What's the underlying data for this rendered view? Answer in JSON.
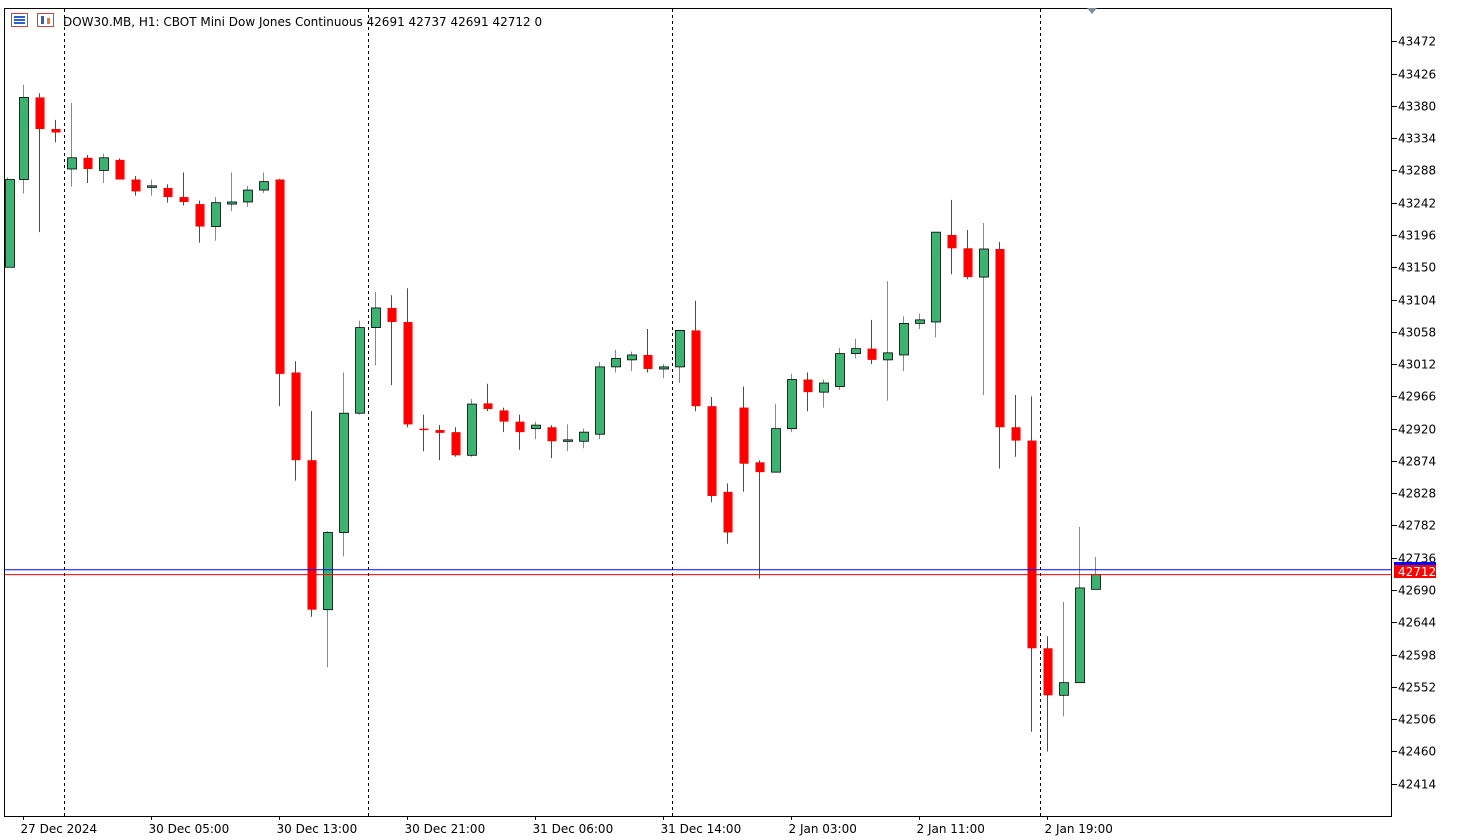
{
  "header": {
    "symbol_line": "DOW30.MB, H1:  CBOT Mini Dow Jones Continuous  42691 42737 42691 42712  0"
  },
  "colors": {
    "bull": "#3cb371",
    "bear": "#ff0000",
    "ask_line": "#0000ff",
    "bid_line": "#ff0000",
    "frame": "#000000",
    "background": "#ffffff"
  },
  "icons": [
    "chart-list-icon",
    "chart-type-icon",
    "shift-marker-icon"
  ],
  "price_label": "42712",
  "chart_data": {
    "type": "candlestick",
    "ylim": [
      42368,
      43518
    ],
    "y_ticks": [
      "43472",
      "43426",
      "43380",
      "43334",
      "43288",
      "43242",
      "43196",
      "43150",
      "43104",
      "43058",
      "43012",
      "42966",
      "42920",
      "42874",
      "42828",
      "42782",
      "42736",
      "42690",
      "42644",
      "42598",
      "42552",
      "42506",
      "42460",
      "42414"
    ],
    "x_labels": [
      "27 Dec 2024",
      "30 Dec 05:00",
      "30 Dec 13:00",
      "30 Dec 21:00",
      "31 Dec 06:00",
      "31 Dec 14:00",
      "2 Jan 03:00",
      "2 Jan 11:00",
      "2 Jan 19:00"
    ],
    "session_separators": [
      4,
      23,
      42,
      65
    ],
    "current_bid": 42712,
    "current_ask": 42719,
    "candles": [
      {
        "o": 43150,
        "h": 43278,
        "l": 43150,
        "c": 43275
      },
      {
        "o": 43275,
        "h": 43410,
        "l": 43255,
        "c": 43392
      },
      {
        "o": 43392,
        "h": 43398,
        "l": 43200,
        "c": 43347
      },
      {
        "o": 43347,
        "h": 43360,
        "l": 43328,
        "c": 43342
      },
      {
        "o": 43290,
        "h": 43384,
        "l": 43265,
        "c": 43306
      },
      {
        "o": 43306,
        "h": 43310,
        "l": 43270,
        "c": 43290
      },
      {
        "o": 43288,
        "h": 43312,
        "l": 43270,
        "c": 43306
      },
      {
        "o": 43303,
        "h": 43305,
        "l": 43275,
        "c": 43275
      },
      {
        "o": 43275,
        "h": 43280,
        "l": 43252,
        "c": 43258
      },
      {
        "o": 43266,
        "h": 43275,
        "l": 43252,
        "c": 43266
      },
      {
        "o": 43263,
        "h": 43268,
        "l": 43242,
        "c": 43250
      },
      {
        "o": 43250,
        "h": 43285,
        "l": 43238,
        "c": 43243
      },
      {
        "o": 43240,
        "h": 43245,
        "l": 43185,
        "c": 43208
      },
      {
        "o": 43208,
        "h": 43250,
        "l": 43188,
        "c": 43242
      },
      {
        "o": 43240,
        "h": 43285,
        "l": 43230,
        "c": 43243
      },
      {
        "o": 43243,
        "h": 43266,
        "l": 43236,
        "c": 43260
      },
      {
        "o": 43260,
        "h": 43285,
        "l": 43256,
        "c": 43272
      },
      {
        "o": 43275,
        "h": 43276,
        "l": 42952,
        "c": 42998
      },
      {
        "o": 43000,
        "h": 43016,
        "l": 42846,
        "c": 42875
      },
      {
        "o": 42875,
        "h": 42945,
        "l": 42652,
        "c": 42662
      },
      {
        "o": 42662,
        "h": 42774,
        "l": 42580,
        "c": 42772
      },
      {
        "o": 42772,
        "h": 43000,
        "l": 42738,
        "c": 42942
      },
      {
        "o": 42942,
        "h": 43074,
        "l": 42940,
        "c": 43064
      },
      {
        "o": 43064,
        "h": 43115,
        "l": 43010,
        "c": 43092
      },
      {
        "o": 43092,
        "h": 43110,
        "l": 42982,
        "c": 43072
      },
      {
        "o": 43072,
        "h": 43120,
        "l": 42922,
        "c": 42926
      },
      {
        "o": 42920,
        "h": 42940,
        "l": 42888,
        "c": 42918
      },
      {
        "o": 42918,
        "h": 42925,
        "l": 42875,
        "c": 42914
      },
      {
        "o": 42915,
        "h": 42922,
        "l": 42880,
        "c": 42882
      },
      {
        "o": 42882,
        "h": 42962,
        "l": 42880,
        "c": 42955
      },
      {
        "o": 42956,
        "h": 42984,
        "l": 42945,
        "c": 42948
      },
      {
        "o": 42946,
        "h": 42950,
        "l": 42915,
        "c": 42930
      },
      {
        "o": 42930,
        "h": 42940,
        "l": 42890,
        "c": 42915
      },
      {
        "o": 42920,
        "h": 42930,
        "l": 42905,
        "c": 42925
      },
      {
        "o": 42922,
        "h": 42925,
        "l": 42878,
        "c": 42902
      },
      {
        "o": 42902,
        "h": 42926,
        "l": 42888,
        "c": 42904
      },
      {
        "o": 42902,
        "h": 42920,
        "l": 42892,
        "c": 42915
      },
      {
        "o": 42912,
        "h": 43015,
        "l": 42905,
        "c": 43008
      },
      {
        "o": 43008,
        "h": 43032,
        "l": 43000,
        "c": 43020
      },
      {
        "o": 43018,
        "h": 43030,
        "l": 43002,
        "c": 43025
      },
      {
        "o": 43025,
        "h": 43062,
        "l": 43000,
        "c": 43005
      },
      {
        "o": 43005,
        "h": 43012,
        "l": 42992,
        "c": 43008
      },
      {
        "o": 43008,
        "h": 43060,
        "l": 42985,
        "c": 43060
      },
      {
        "o": 43060,
        "h": 43102,
        "l": 42945,
        "c": 42952
      },
      {
        "o": 42952,
        "h": 42965,
        "l": 42815,
        "c": 42824
      },
      {
        "o": 42830,
        "h": 42842,
        "l": 42756,
        "c": 42772
      },
      {
        "o": 42950,
        "h": 42980,
        "l": 42830,
        "c": 42870
      },
      {
        "o": 42872,
        "h": 42875,
        "l": 42706,
        "c": 42858
      },
      {
        "o": 42858,
        "h": 42955,
        "l": 42858,
        "c": 42920
      },
      {
        "o": 42920,
        "h": 42998,
        "l": 42915,
        "c": 42990
      },
      {
        "o": 42990,
        "h": 43000,
        "l": 42945,
        "c": 42972
      },
      {
        "o": 42972,
        "h": 42990,
        "l": 42950,
        "c": 42985
      },
      {
        "o": 42980,
        "h": 43035,
        "l": 42975,
        "c": 43027
      },
      {
        "o": 43027,
        "h": 43048,
        "l": 43020,
        "c": 43034
      },
      {
        "o": 43034,
        "h": 43075,
        "l": 43012,
        "c": 43018
      },
      {
        "o": 43018,
        "h": 43130,
        "l": 42960,
        "c": 43028
      },
      {
        "o": 43025,
        "h": 43080,
        "l": 43002,
        "c": 43070
      },
      {
        "o": 43070,
        "h": 43084,
        "l": 43062,
        "c": 43075
      },
      {
        "o": 43072,
        "h": 43200,
        "l": 43050,
        "c": 43200
      },
      {
        "o": 43196,
        "h": 43246,
        "l": 43140,
        "c": 43177
      },
      {
        "o": 43177,
        "h": 43203,
        "l": 43133,
        "c": 43136
      },
      {
        "o": 43136,
        "h": 43213,
        "l": 42968,
        "c": 43176
      },
      {
        "o": 43176,
        "h": 43186,
        "l": 42863,
        "c": 42922
      },
      {
        "o": 42922,
        "h": 42968,
        "l": 42880,
        "c": 42903
      },
      {
        "o": 42903,
        "h": 42966,
        "l": 42488,
        "c": 42607
      },
      {
        "o": 42607,
        "h": 42624,
        "l": 42460,
        "c": 42540
      },
      {
        "o": 42540,
        "h": 42673,
        "l": 42510,
        "c": 42558
      },
      {
        "o": 42558,
        "h": 42780,
        "l": 42558,
        "c": 42693
      },
      {
        "o": 42691,
        "h": 42737,
        "l": 42691,
        "c": 42712
      }
    ]
  }
}
